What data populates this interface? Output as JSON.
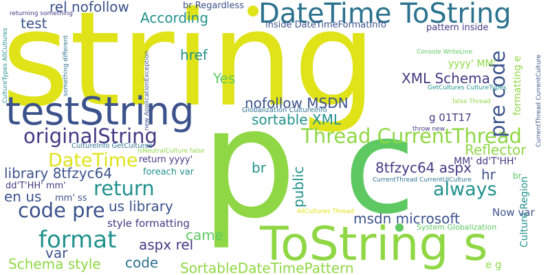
{
  "colors": {
    "yellow": "#dfe318",
    "lime": "#8fd744",
    "green": "#5ec962",
    "teal": "#21918c",
    "blue": "#3b528b",
    "cyan": "#2c728e",
    "navy": "#443983",
    "seafoam": "#35b779"
  },
  "words": [
    {
      "id": "string",
      "text": "string"
    },
    {
      "id": "p",
      "text": "p"
    },
    {
      "id": "c",
      "text": "c"
    },
    {
      "id": "testString",
      "text": "testString"
    },
    {
      "id": "ToString-s",
      "text": "ToString s"
    },
    {
      "id": "DateTime-ToString",
      "text": "DateTime ToString"
    },
    {
      "id": "originalString",
      "text": "originalString"
    },
    {
      "id": "Thread-CurrentThread",
      "text": "Thread CurrentThread"
    },
    {
      "id": "format",
      "text": "format"
    },
    {
      "id": "code-pre",
      "text": "code pre"
    },
    {
      "id": "pre-code",
      "text": "pre code"
    },
    {
      "id": "return-big",
      "text": "return"
    },
    {
      "id": "always",
      "text": "always"
    },
    {
      "id": "DateTime",
      "text": "DateTime"
    },
    {
      "id": "rel-nofollow",
      "text": "rel nofollow"
    },
    {
      "id": "XML-Schema",
      "text": "XML Schema"
    },
    {
      "id": "nofollow-MSDN",
      "text": "nofollow MSDN"
    },
    {
      "id": "sortable-XML",
      "text": "sortable XML"
    },
    {
      "id": "library-8tfzyc64",
      "text": "library 8tfzyc64"
    },
    {
      "id": "8tfzyc64-aspx",
      "text": "8tfzyc64 aspx"
    },
    {
      "id": "msdn-microsoft",
      "text": "msdn microsoft"
    },
    {
      "id": "SortableDateTimePattern",
      "text": "SortableDateTimePattern"
    },
    {
      "id": "Schema-style",
      "text": "Schema style"
    },
    {
      "id": "Reflector",
      "text": "Reflector"
    },
    {
      "id": "According",
      "text": "According"
    },
    {
      "id": "test",
      "text": "test"
    },
    {
      "id": "href",
      "text": "href"
    },
    {
      "id": "Yes",
      "text": "Yes"
    },
    {
      "id": "br-mid",
      "text": "br"
    },
    {
      "id": "us-library",
      "text": "us library"
    },
    {
      "id": "en-us",
      "text": "en us"
    },
    {
      "id": "aspx-rel",
      "text": "aspx rel"
    },
    {
      "id": "came",
      "text": "came"
    },
    {
      "id": "code",
      "text": "code"
    },
    {
      "id": "var",
      "text": "var"
    },
    {
      "id": "public",
      "text": "public"
    },
    {
      "id": "hr",
      "text": "hr"
    },
    {
      "id": "style-formatting",
      "text": "style formatting"
    },
    {
      "id": "Now-var",
      "text": "Now var"
    },
    {
      "id": "e-g",
      "text": "e g"
    },
    {
      "id": "Culture-Region",
      "text": "Culture Region"
    },
    {
      "id": "formatting-e",
      "text": "formatting e"
    },
    {
      "id": "g-01T17",
      "text": "g 01T17"
    },
    {
      "id": "yyyy-MM",
      "text": "yyyy' MM'"
    },
    {
      "id": "MM-dd-T-HH",
      "text": "MM' dd'T'HH'"
    },
    {
      "id": "dd-T-HH-mm",
      "text": "dd'T'HH' mm'"
    },
    {
      "id": "mm-ss",
      "text": "mm' ss"
    },
    {
      "id": "return-yyyy",
      "text": "return yyyy'"
    },
    {
      "id": "foreach-var",
      "text": "foreach var"
    },
    {
      "id": "br-Regardless",
      "text": "br Regardless"
    },
    {
      "id": "inside-DateTimeFormatInfo",
      "text": "inside DateTimeFormatInfo"
    },
    {
      "id": "pattern-inside",
      "text": "pattern inside"
    },
    {
      "id": "Globalization-CultureInfo",
      "text": "Globalization CultureInfo"
    },
    {
      "id": "CultureInfo-GetCultures",
      "text": "CultureInfo GetCultures"
    },
    {
      "id": "GetCultures-CultureTypes",
      "text": "GetCultures CultureTypes"
    },
    {
      "id": "Console-WriteLine",
      "text": "Console WriteLine"
    },
    {
      "id": "false-Thread",
      "text": "false Thread"
    },
    {
      "id": "throw-new",
      "text": "throw new"
    },
    {
      "id": "CurrentThread-CurrentUICulture",
      "text": "CurrentThread CurrentUICulture"
    },
    {
      "id": "AllCultures-Thread",
      "text": "AllCultures Thread"
    },
    {
      "id": "System-Globalization",
      "text": "System Globalization"
    },
    {
      "id": "IsNeutralCulture-false",
      "text": "IsNeutralCulture false"
    },
    {
      "id": "returning-something",
      "text": "returning something"
    },
    {
      "id": "something-different",
      "text": "something different"
    },
    {
      "id": "CultureTypes-AllCultures",
      "text": "CultureTypes AllCultures"
    },
    {
      "id": "new-ApplicationException",
      "text": "new ApplicationException"
    },
    {
      "id": "CurrentThread-CurrentCulture",
      "text": "CurrentThread CurrentCulture"
    },
    {
      "id": "br-small",
      "text": "br"
    }
  ]
}
